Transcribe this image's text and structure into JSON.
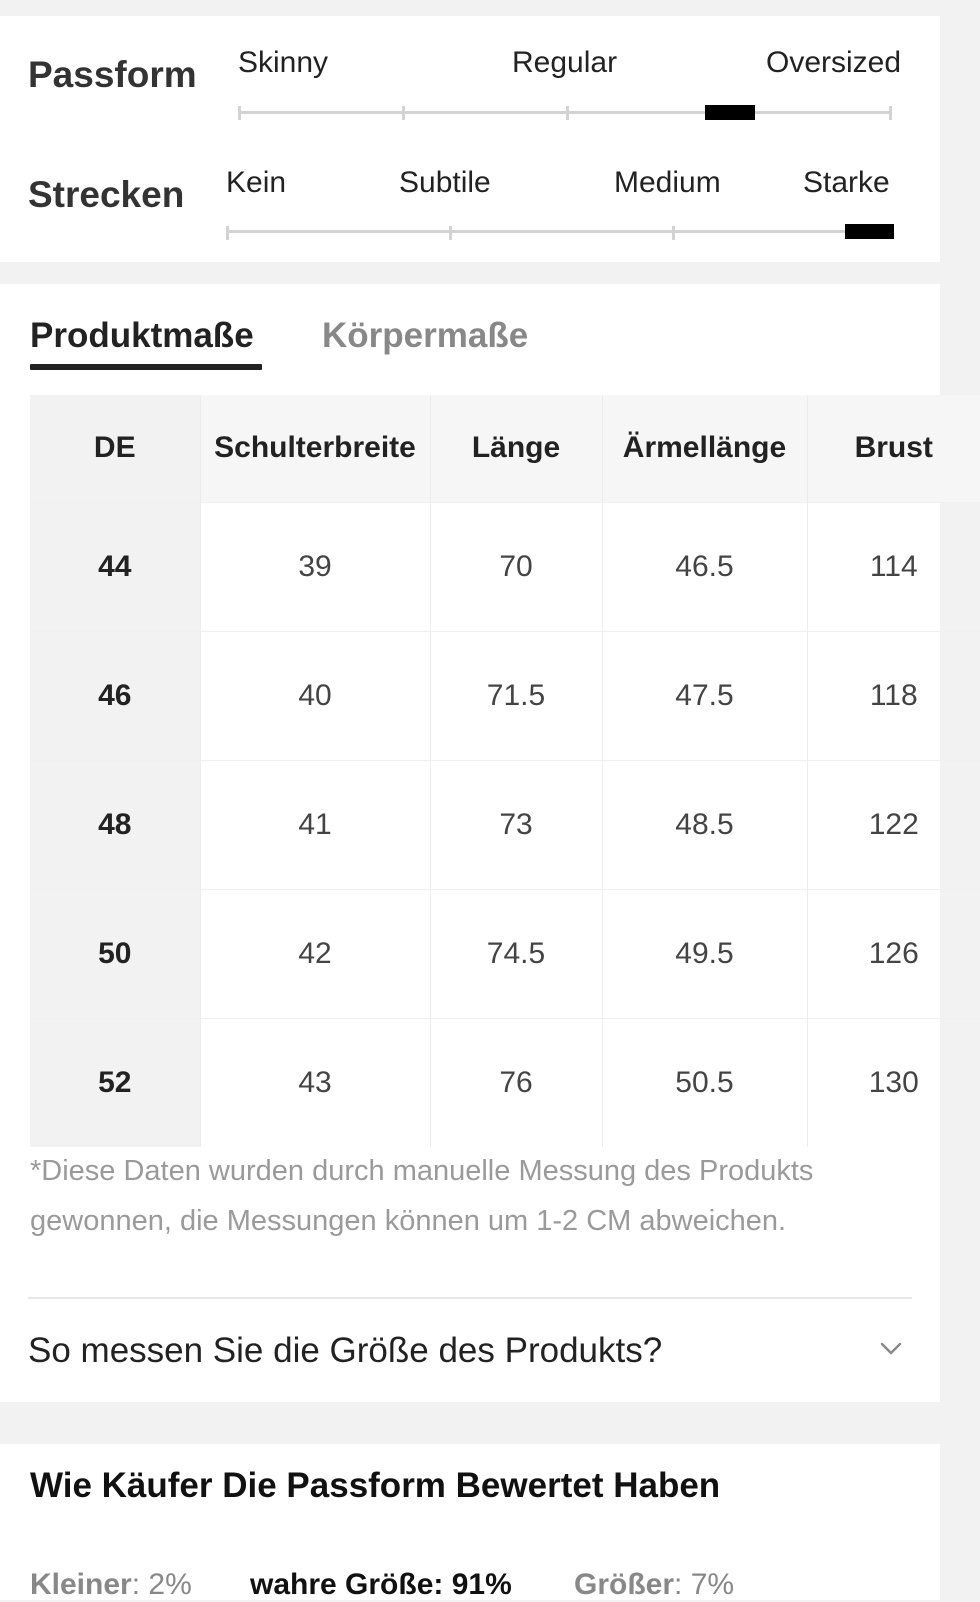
{
  "fit": {
    "passform": {
      "title": "Passform",
      "labels": [
        "Skinny",
        "Regular",
        "Oversized"
      ]
    },
    "strecken": {
      "title": "Strecken",
      "labels": [
        "Kein",
        "Subtile",
        "Medium",
        "Starke"
      ]
    }
  },
  "tabs": {
    "active": "Produktmaße",
    "inactive": "Körpermaße"
  },
  "table": {
    "headers": [
      "DE",
      "Schulterbreite",
      "Länge",
      "Ärmellänge",
      "Brust"
    ],
    "rows": [
      [
        "44",
        "39",
        "70",
        "46.5",
        "114"
      ],
      [
        "46",
        "40",
        "71.5",
        "47.5",
        "118"
      ],
      [
        "48",
        "41",
        "73",
        "48.5",
        "122"
      ],
      [
        "50",
        "42",
        "74.5",
        "49.5",
        "126"
      ],
      [
        "52",
        "43",
        "76",
        "50.5",
        "130"
      ]
    ]
  },
  "note": "*Diese Daten wurden durch manuelle Messung des Produkts gewonnen, die Messungen können um 1-2 CM abweichen.",
  "measure_link": "So messen Sie die Größe des Produkts?",
  "rating": {
    "title": "Wie Käufer Die Passform Bewertet Haben",
    "smaller_label": "Kleiner",
    "smaller_value": "2%",
    "true_label": "wahre Größe",
    "true_value": "91%",
    "larger_label": "Größer",
    "larger_value": "7%"
  },
  "icons": {
    "chevron": "chevron-down-icon"
  }
}
